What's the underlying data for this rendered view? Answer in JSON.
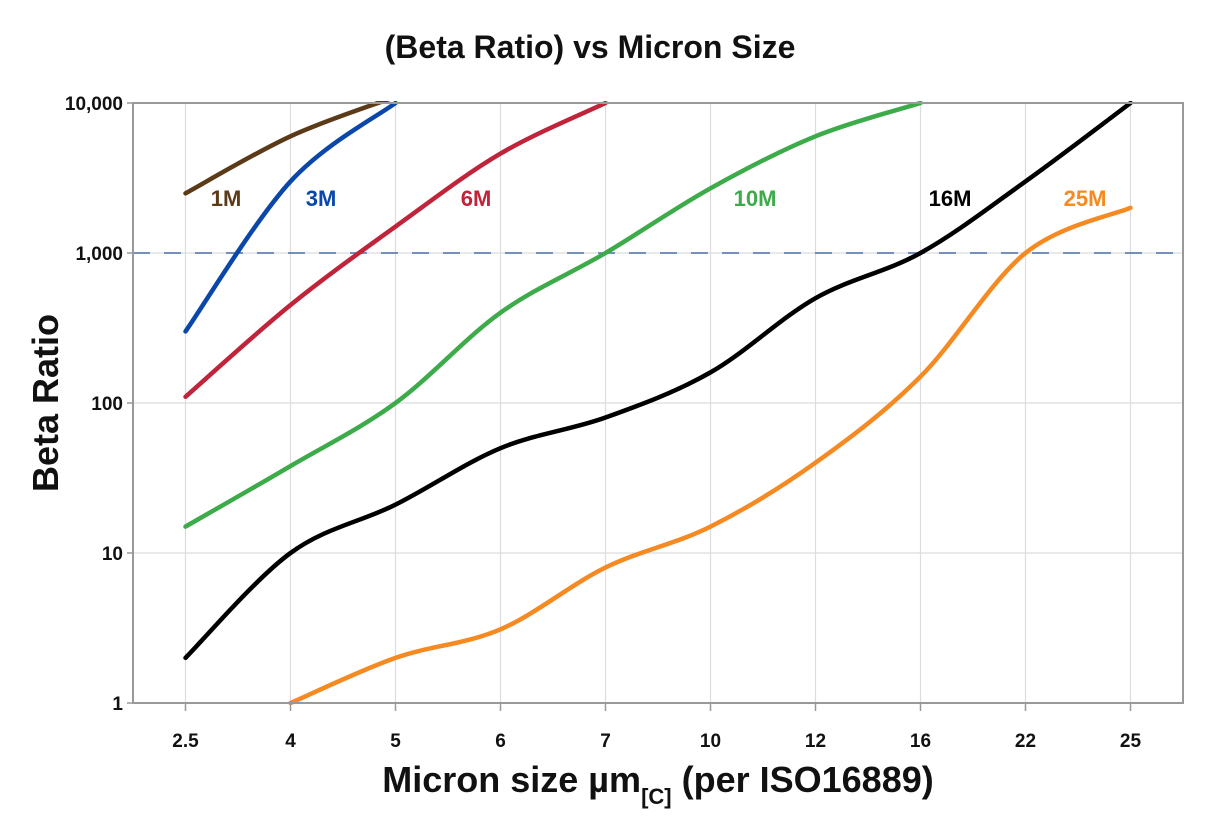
{
  "chart_data": {
    "type": "line",
    "title": "(Beta Ratio) vs Micron Size",
    "xlabel": {
      "main": "Micron size µm",
      "subscript": "[C]",
      "suffix": " (per ISO16889)"
    },
    "ylabel": "Beta Ratio",
    "y_scale": "log",
    "ylim": [
      1,
      10000
    ],
    "y_ticks": [
      1,
      10,
      100,
      1000,
      10000
    ],
    "y_tick_labels": [
      "1",
      "10",
      "100",
      "1,000",
      "10,000"
    ],
    "categories": [
      "2.5",
      "4",
      "5",
      "6",
      "7",
      "10",
      "12",
      "16",
      "22",
      "25"
    ],
    "grid": true,
    "reference_line": {
      "y": 1000,
      "style": "dashed",
      "color": "#4a6fa5"
    },
    "series": [
      {
        "name": "1M",
        "color": "#5b3a17",
        "values": [
          2500,
          6000,
          11000,
          null,
          null,
          null,
          null,
          null,
          null,
          null
        ]
      },
      {
        "name": "3M",
        "color": "#0a47a9",
        "values": [
          300,
          3000,
          10000,
          null,
          null,
          null,
          null,
          null,
          null,
          null
        ]
      },
      {
        "name": "6M",
        "color": "#c0243a",
        "values": [
          110,
          450,
          1500,
          4600,
          10000,
          null,
          null,
          null,
          null,
          null
        ]
      },
      {
        "name": "10M",
        "color": "#3dab4a",
        "values": [
          15,
          38,
          100,
          400,
          1000,
          2700,
          6000,
          10000,
          null,
          null
        ]
      },
      {
        "name": "16M",
        "color": "#000000",
        "values": [
          2,
          10,
          21,
          50,
          80,
          160,
          500,
          1000,
          3000,
          10000
        ]
      },
      {
        "name": "25M",
        "color": "#f58a22",
        "values": [
          null,
          1,
          2,
          3.1,
          8,
          15,
          40,
          150,
          1000,
          2000
        ]
      }
    ]
  }
}
